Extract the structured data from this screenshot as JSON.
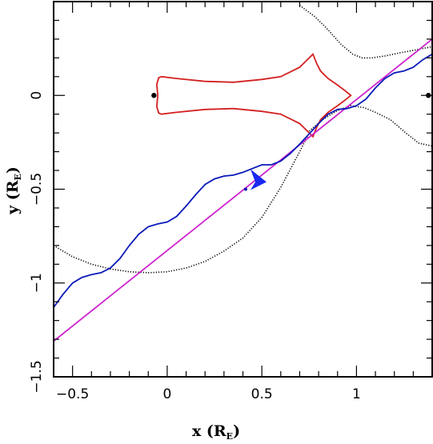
{
  "chart_data": {
    "type": "line",
    "xlabel": "x",
    "xunit_main": "R",
    "xunit_sub": "E",
    "ylabel": "y",
    "yunit_main": "R",
    "yunit_sub": "E",
    "xlim": [
      -0.6,
      1.4
    ],
    "ylim": [
      -1.5,
      0.5
    ],
    "x_ticks": [
      {
        "value": -0.5,
        "label": "−0.5"
      },
      {
        "value": 0,
        "label": "0"
      },
      {
        "value": 0.5,
        "label": "0.5"
      },
      {
        "value": 1,
        "label": "1"
      }
    ],
    "y_ticks": [
      {
        "value": -1.5,
        "label": "−1.5"
      },
      {
        "value": -1,
        "label": "−1"
      },
      {
        "value": -0.5,
        "label": "−0.5"
      },
      {
        "value": 0,
        "label": "0"
      }
    ],
    "grid": false,
    "colors": {
      "caustic": "#d42020",
      "critical_curves": "#000000",
      "source_trajectory": "#cc22cc",
      "image_trajectory": "#0a1ab8",
      "arrow": "#1a28f0",
      "lens_points": "#000000"
    },
    "lens_points": [
      {
        "x": -0.07,
        "y": 0.0
      },
      {
        "x": 1.38,
        "y": 0.0
      }
    ],
    "source_trajectory": {
      "x": [
        -0.6,
        1.4
      ],
      "y": [
        -1.31,
        0.3
      ]
    },
    "caustic": {
      "x": [
        -0.05,
        -0.055,
        -0.045,
        -0.03,
        0.05,
        0.2,
        0.35,
        0.5,
        0.6,
        0.7,
        0.77,
        0.79,
        0.81,
        0.85,
        0.9,
        0.94,
        0.97,
        0.94,
        0.9,
        0.85,
        0.81,
        0.79,
        0.77,
        0.7,
        0.6,
        0.5,
        0.35,
        0.2,
        0.05,
        -0.03,
        -0.045,
        -0.055,
        -0.05
      ],
      "y": [
        0.0,
        0.06,
        0.094,
        0.1,
        0.09,
        0.075,
        0.07,
        0.085,
        0.1,
        0.15,
        0.22,
        0.17,
        0.13,
        0.09,
        0.055,
        0.025,
        0.0,
        -0.025,
        -0.055,
        -0.09,
        -0.13,
        -0.17,
        -0.22,
        -0.15,
        -0.1,
        -0.085,
        -0.07,
        -0.075,
        -0.09,
        -0.1,
        -0.094,
        -0.06,
        0.0
      ]
    },
    "critical_curves": [
      {
        "x": [
          -0.6,
          -0.5,
          -0.4,
          -0.3,
          -0.2,
          -0.1,
          0.0,
          0.1,
          0.2,
          0.3,
          0.4,
          0.5,
          0.6,
          0.7,
          0.75
        ],
        "y": [
          -0.8,
          -0.86,
          -0.9,
          -0.925,
          -0.94,
          -0.945,
          -0.94,
          -0.92,
          -0.885,
          -0.83,
          -0.76,
          -0.65,
          -0.49,
          -0.3,
          -0.2
        ]
      },
      {
        "x": [
          0.7,
          0.78,
          0.85,
          0.92,
          0.98,
          1.03,
          1.08,
          1.15,
          1.22,
          1.3,
          1.4
        ],
        "y": [
          0.48,
          0.42,
          0.35,
          0.27,
          0.22,
          0.2,
          0.2,
          0.21,
          0.225,
          0.24,
          0.26
        ]
      },
      {
        "x": [
          0.75,
          0.82,
          0.9,
          0.97,
          1.04,
          1.1,
          1.18,
          1.26,
          1.33,
          1.4
        ],
        "y": [
          -0.19,
          -0.13,
          -0.08,
          -0.055,
          -0.065,
          -0.09,
          -0.13,
          -0.2,
          -0.255,
          -0.27
        ]
      }
    ],
    "image_trajectory": {
      "x": [
        -0.6,
        -0.55,
        -0.5,
        -0.45,
        -0.4,
        -0.35,
        -0.3,
        -0.25,
        -0.2,
        -0.15,
        -0.1,
        -0.05,
        0.0,
        0.05,
        0.1,
        0.15,
        0.2,
        0.25,
        0.3,
        0.35,
        0.4,
        0.45,
        0.5,
        0.55,
        0.6,
        0.65,
        0.7,
        0.75,
        0.8,
        0.85,
        0.9,
        0.95,
        1.0,
        1.05,
        1.1,
        1.15,
        1.2,
        1.25,
        1.3,
        1.35,
        1.4
      ],
      "y": [
        -1.13,
        -1.06,
        -1.0,
        -0.97,
        -0.955,
        -0.945,
        -0.92,
        -0.87,
        -0.8,
        -0.74,
        -0.7,
        -0.685,
        -0.675,
        -0.645,
        -0.59,
        -0.53,
        -0.475,
        -0.445,
        -0.43,
        -0.425,
        -0.41,
        -0.39,
        -0.37,
        -0.37,
        -0.35,
        -0.31,
        -0.26,
        -0.205,
        -0.15,
        -0.1,
        -0.075,
        -0.07,
        -0.055,
        -0.02,
        0.04,
        0.09,
        0.12,
        0.13,
        0.15,
        0.19,
        0.22
      ]
    },
    "arrow": {
      "x": 0.44,
      "y": -0.47,
      "dx": 0.03,
      "dy": 0.0
    }
  }
}
